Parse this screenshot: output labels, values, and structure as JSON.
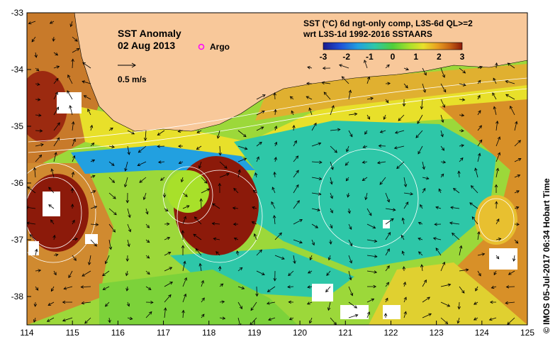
{
  "title": {
    "line1": "SST Anomaly",
    "line2": "02 Aug 2013"
  },
  "legend": {
    "argo_label": "Argo",
    "argo_color": "#ff00ff",
    "velocity_label": "0.5 m/s"
  },
  "colorbar": {
    "title_line1": "SST (°C) 6d ngt-only comp, L3S-6d QL>=2",
    "title_line2": "wrt L3S-1d 1992-2016 SSTAARS",
    "ticks": [
      "-3",
      "-2",
      "-1",
      "0",
      "1",
      "2",
      "3"
    ],
    "colors": [
      "#1a1a8c",
      "#1f4fd6",
      "#22a0e0",
      "#2ec7a8",
      "#4fcf3a",
      "#a8e02a",
      "#e8e02a",
      "#e8a020",
      "#c86414",
      "#8c1a0a"
    ]
  },
  "axes": {
    "x_ticks": [
      "114",
      "115",
      "116",
      "117",
      "118",
      "119",
      "120",
      "121",
      "122",
      "123",
      "124",
      "125"
    ],
    "y_ticks": [
      "-33",
      "-34",
      "-35",
      "-36",
      "-37",
      "-38"
    ]
  },
  "land_color": "#f8c89a",
  "credit": "© IMOS 05-Jul-2017 06:34 Hobart Time"
}
